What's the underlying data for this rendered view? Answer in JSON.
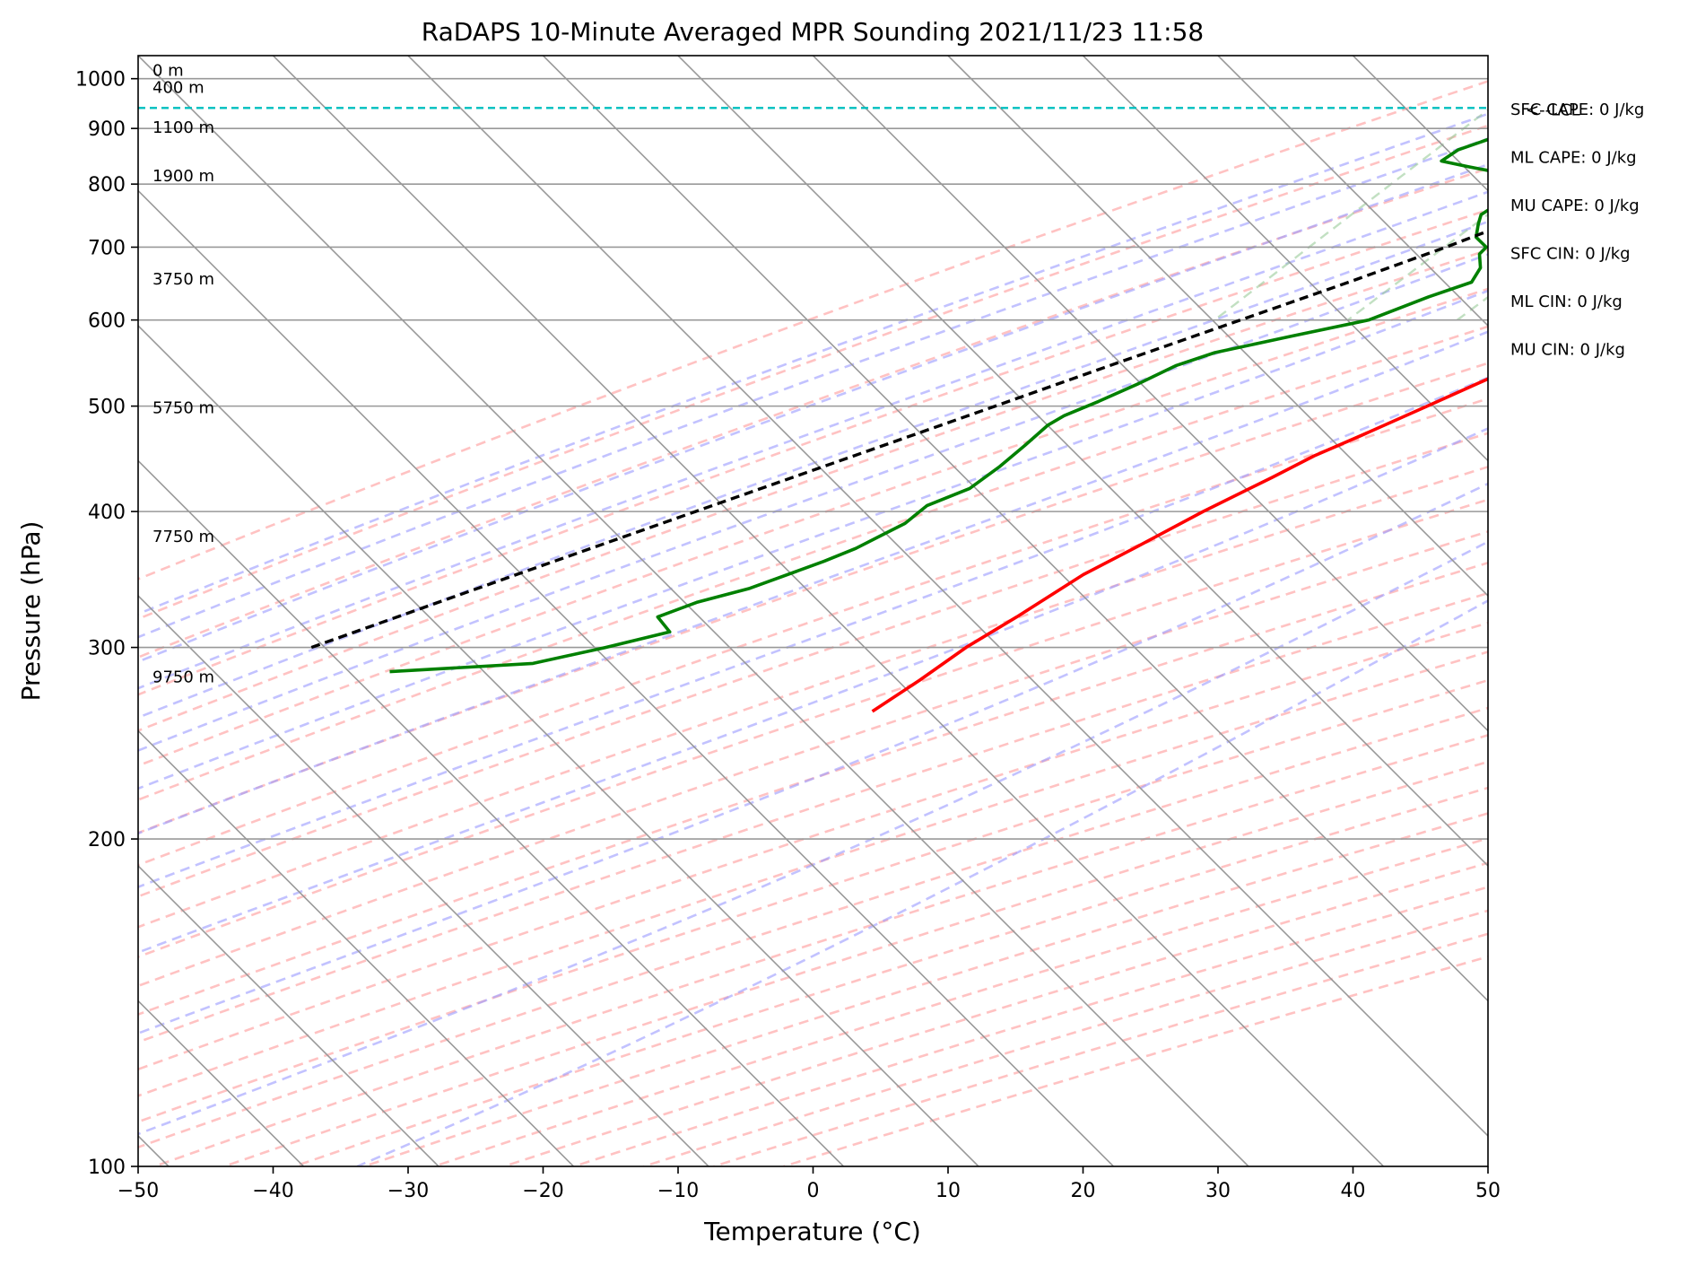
{
  "chart_data": {
    "type": "line",
    "title": "RaDAPS 10-Minute Averaged MPR Sounding 2021/11/23 11:58",
    "xlabel": "Temperature (°C)",
    "ylabel": "Pressure (hPa)",
    "xlim": [
      -50,
      50
    ],
    "ylim": [
      1050,
      100
    ],
    "yscale": "log",
    "skew": 45,
    "grid": true,
    "xticks": [
      -50,
      -40,
      -30,
      -20,
      -10,
      0,
      10,
      20,
      30,
      40,
      50
    ],
    "xtick_labels": [
      "−50",
      "−40",
      "−30",
      "−20",
      "−10",
      "0",
      "10",
      "20",
      "30",
      "40",
      "50"
    ],
    "yticks": [
      100,
      200,
      300,
      400,
      500,
      600,
      700,
      800,
      900,
      1000
    ],
    "ytick_labels": [
      "100",
      "200",
      "300",
      "400",
      "500",
      "600",
      "700",
      "800",
      "900",
      "1000"
    ],
    "colors": {
      "temperature": "#ff0000",
      "dewpoint": "#008000",
      "parcel": "#000000",
      "lcl_line": "#00bfbf",
      "dry_adiabats": "#ff9999",
      "moist_adiabats": "#9999ff",
      "mixing_ratio": "#99cc99",
      "isotherms": "#999999"
    },
    "series": [
      {
        "kind": "temperature",
        "points": [
          [
            1000,
            0.0
          ],
          [
            985,
            -0.8
          ],
          [
            970,
            -0.6
          ],
          [
            950,
            -0.2
          ],
          [
            938,
            0.7
          ],
          [
            925,
            1.8
          ],
          [
            910,
            3.1
          ],
          [
            895,
            3.9
          ],
          [
            870,
            4.6
          ],
          [
            845,
            4.8
          ],
          [
            820,
            5.2
          ],
          [
            800,
            5.4
          ],
          [
            780,
            5.1
          ],
          [
            760,
            4.5
          ],
          [
            730,
            3.3
          ],
          [
            700,
            1.8
          ],
          [
            680,
            0.6
          ],
          [
            660,
            -0.6
          ],
          [
            640,
            -1.6
          ],
          [
            600,
            -3.8
          ],
          [
            560,
            -6.3
          ],
          [
            530,
            -8.3
          ],
          [
            500,
            -10.8
          ],
          [
            470,
            -13.5
          ],
          [
            450,
            -15.5
          ],
          [
            430,
            -17.0
          ],
          [
            400,
            -19.6
          ],
          [
            370,
            -22.0
          ],
          [
            350,
            -23.8
          ],
          [
            320,
            -25.6
          ],
          [
            300,
            -27.1
          ],
          [
            280,
            -28.1
          ],
          [
            262,
            -29.3
          ]
        ]
      },
      {
        "kind": "dewpoint",
        "points": [
          [
            1000,
            -11.8
          ],
          [
            995,
            -17.2
          ],
          [
            985,
            -23.5
          ],
          [
            975,
            -26.0
          ],
          [
            960,
            -27.3
          ],
          [
            955,
            -27.5
          ],
          [
            945,
            -27.2
          ],
          [
            930,
            -26.9
          ],
          [
            918,
            -25.5
          ],
          [
            908,
            -25.0
          ],
          [
            895,
            -25.0
          ],
          [
            880,
            -26.0
          ],
          [
            860,
            -27.5
          ],
          [
            840,
            -27.9
          ],
          [
            830,
            -25.5
          ],
          [
            815,
            -21.5
          ],
          [
            805,
            -19.3
          ],
          [
            790,
            -19.5
          ],
          [
            780,
            -20.1
          ],
          [
            765,
            -20.6
          ],
          [
            750,
            -21.0
          ],
          [
            735,
            -20.5
          ],
          [
            715,
            -19.7
          ],
          [
            700,
            -18.2
          ],
          [
            690,
            -18.2
          ],
          [
            670,
            -17.1
          ],
          [
            650,
            -16.7
          ],
          [
            630,
            -18.8
          ],
          [
            600,
            -21.5
          ],
          [
            580,
            -26.0
          ],
          [
            560,
            -30.5
          ],
          [
            545,
            -32.4
          ],
          [
            525,
            -33.8
          ],
          [
            505,
            -35.5
          ],
          [
            490,
            -37.0
          ],
          [
            480,
            -37.5
          ],
          [
            460,
            -37.7
          ],
          [
            440,
            -38.0
          ],
          [
            420,
            -38.6
          ],
          [
            405,
            -40.5
          ],
          [
            390,
            -40.8
          ],
          [
            380,
            -41.7
          ],
          [
            370,
            -42.6
          ],
          [
            360,
            -44.0
          ],
          [
            340,
            -47.5
          ],
          [
            330,
            -50.4
          ],
          [
            320,
            -52.2
          ],
          [
            310,
            -50.2
          ],
          [
            300,
            -53.8
          ],
          [
            290,
            -58.0
          ],
          [
            285,
            -68.0
          ]
        ]
      },
      {
        "kind": "parcel",
        "points": [
          [
            1000,
            0.0
          ],
          [
            940,
            -5.2
          ],
          [
            900,
            -7.4
          ],
          [
            850,
            -10.3
          ],
          [
            800,
            -13.6
          ],
          [
            750,
            -17.3
          ],
          [
            700,
            -21.2
          ],
          [
            650,
            -25.8
          ],
          [
            600,
            -31.0
          ],
          [
            550,
            -36.7
          ],
          [
            500,
            -42.8
          ],
          [
            450,
            -49.6
          ],
          [
            400,
            -57.2
          ],
          [
            350,
            -65.8
          ],
          [
            300,
            -75.6
          ]
        ]
      }
    ],
    "lcl_pressure": 940,
    "lcl_label": "<--LCL",
    "height_labels": [
      {
        "pressure": 1000,
        "label": "0 m"
      },
      {
        "pressure": 965,
        "label": "400 m"
      },
      {
        "pressure": 887,
        "label": "1100 m"
      },
      {
        "pressure": 800,
        "label": "1900 m"
      },
      {
        "pressure": 643,
        "label": "3750 m"
      },
      {
        "pressure": 490,
        "label": "5750 m"
      },
      {
        "pressure": 373,
        "label": "7750 m"
      },
      {
        "pressure": 277,
        "label": "9750 m"
      }
    ],
    "stats": [
      "SFC CAPE: 0 J/kg",
      "ML CAPE: 0 J/kg",
      "MU CAPE: 0 J/kg",
      "SFC CIN: 0 J/kg",
      "ML CIN: 0 J/kg",
      "MU CIN: 0 J/kg"
    ]
  }
}
